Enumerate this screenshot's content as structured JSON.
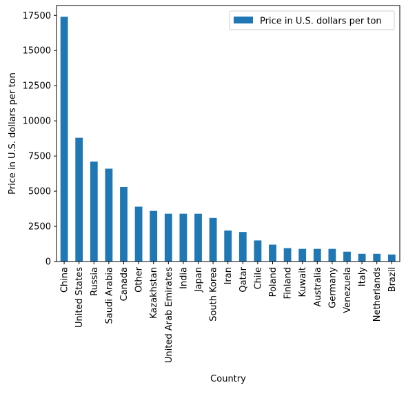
{
  "chart_data": {
    "type": "bar",
    "title": "",
    "xlabel": "Country",
    "ylabel": "Price in U.S. dollars per ton",
    "ylim": [
      0,
      18200
    ],
    "yticks": [
      0,
      2500,
      5000,
      7500,
      10000,
      12500,
      15000,
      17500
    ],
    "grid": false,
    "legend": {
      "placement": "top-right",
      "entries": [
        "Price in U.S. dollars per ton"
      ]
    },
    "categories": [
      "China",
      "United States",
      "Russia",
      "Saudi Arabia",
      "Canada",
      "Other",
      "Kazakhstan",
      "United Arab Emirates",
      "India",
      "Japan",
      "South Korea",
      "Iran",
      "Qatar",
      "Chile",
      "Poland",
      "Finland",
      "Kuwait",
      "Australia",
      "Germany",
      "Venezuela",
      "Italy",
      "Netherlands",
      "Brazil"
    ],
    "series": [
      {
        "name": "Price in U.S. dollars per ton",
        "color": "#1f77b4",
        "values": [
          17400,
          8800,
          7100,
          6600,
          5300,
          3900,
          3600,
          3400,
          3400,
          3400,
          3100,
          2200,
          2100,
          1500,
          1200,
          950,
          900,
          900,
          900,
          700,
          550,
          550,
          500
        ]
      }
    ]
  }
}
